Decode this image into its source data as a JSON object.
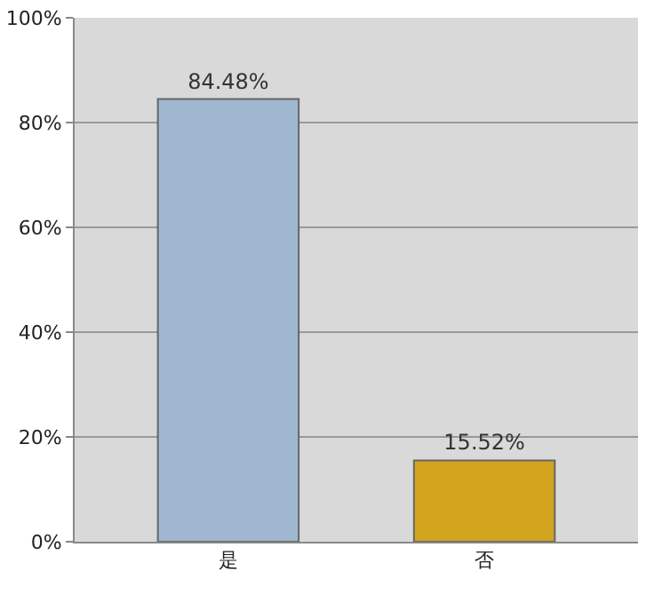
{
  "chart_data": {
    "type": "bar",
    "categories": [
      "是",
      "否"
    ],
    "values": [
      84.48,
      15.52
    ],
    "colors": [
      "#9fb8cf",
      "#d2a31c"
    ],
    "value_labels": [
      "84.48%",
      "15.52%"
    ],
    "ylim": [
      0,
      100
    ],
    "yticks": [
      {
        "value": 0,
        "label": "0%"
      },
      {
        "value": 20,
        "label": "20%"
      },
      {
        "value": 40,
        "label": "40%"
      },
      {
        "value": 60,
        "label": "60%"
      },
      {
        "value": 80,
        "label": "80%"
      },
      {
        "value": 100,
        "label": "100%"
      }
    ],
    "grid": "y"
  }
}
